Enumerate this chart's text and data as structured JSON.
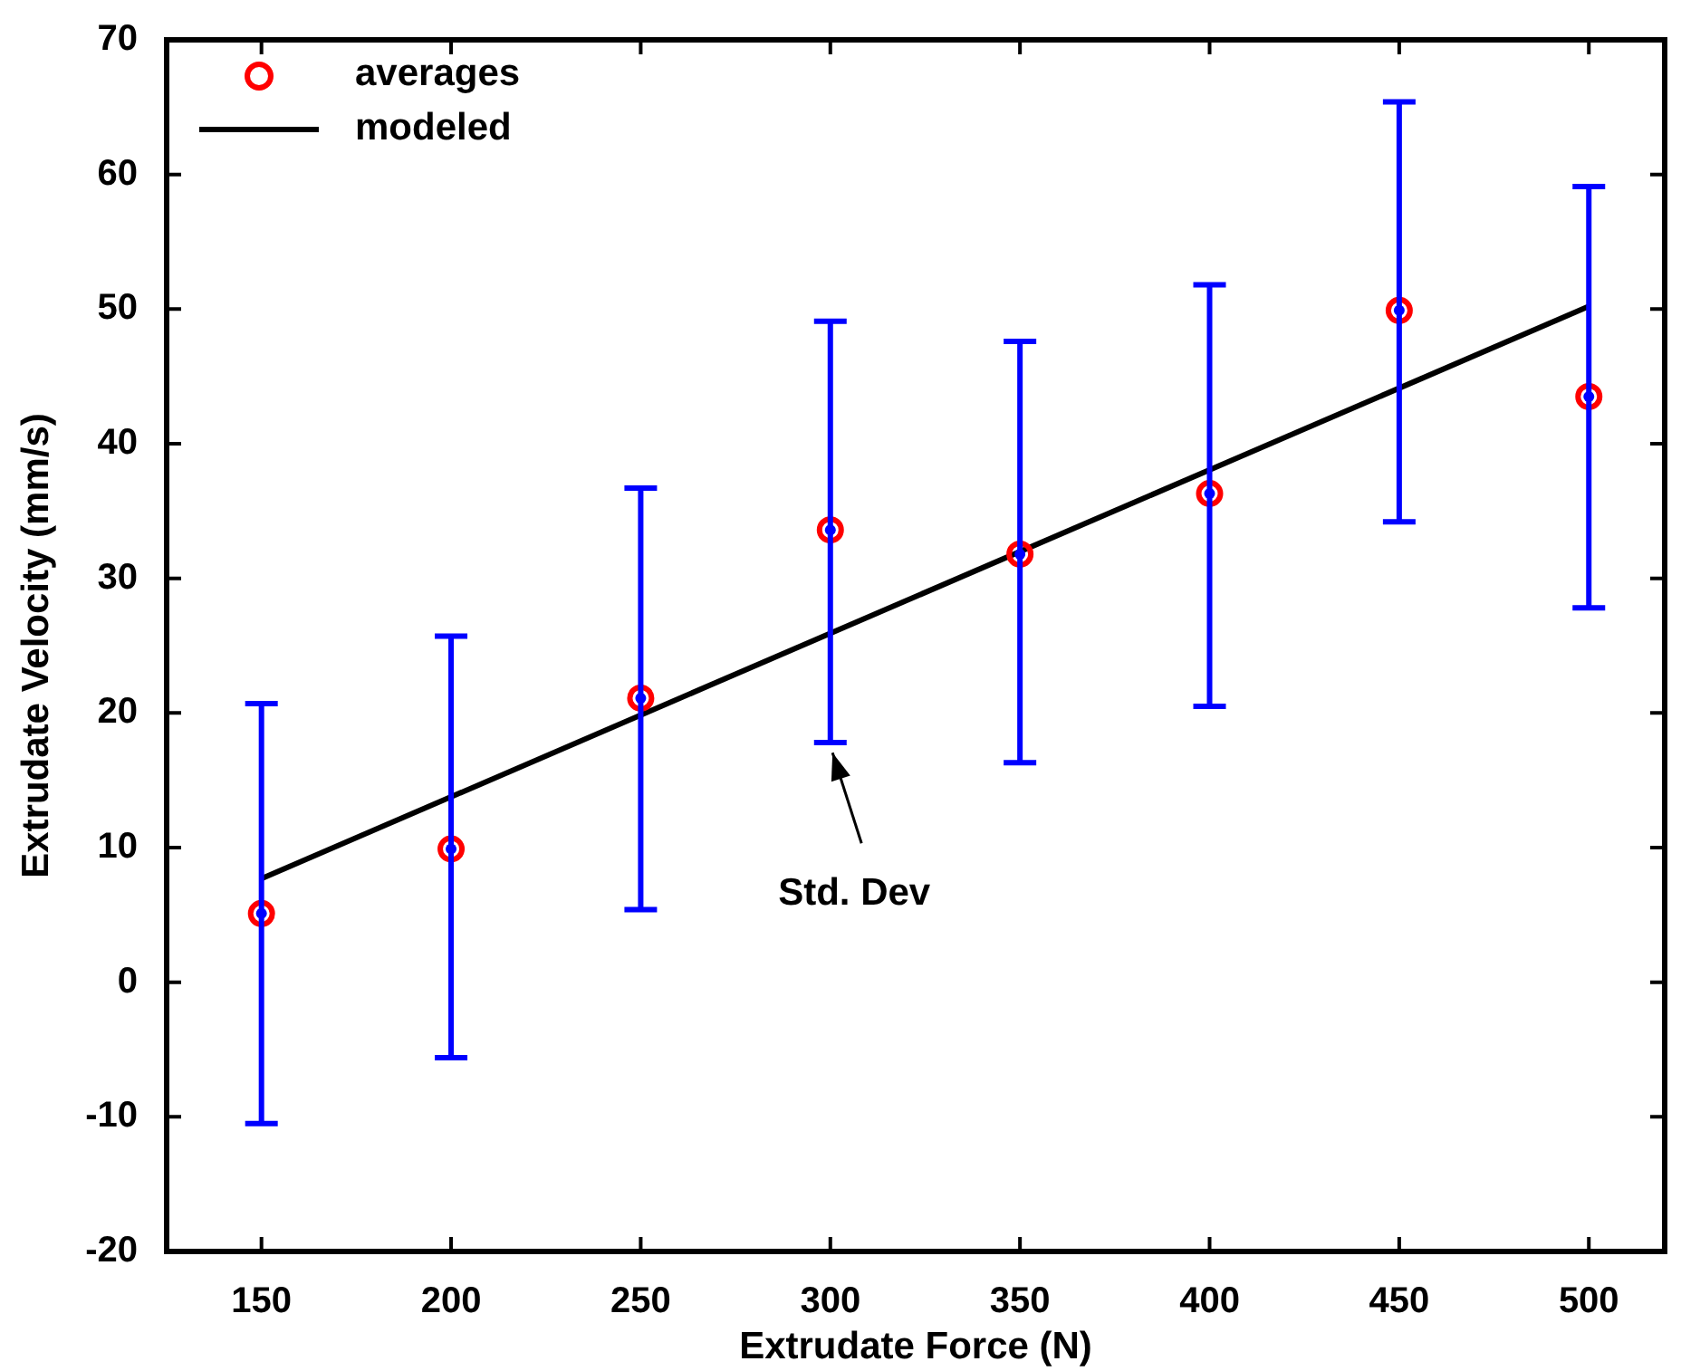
{
  "chart_data": {
    "type": "scatter",
    "xlabel": "Extrudate Force (N)",
    "ylabel": "Extrudate Velocity (mm/s)",
    "xlim": [
      125,
      520
    ],
    "xticks": [
      150,
      200,
      250,
      300,
      350,
      400,
      450,
      500
    ],
    "ylim": [
      -20,
      70
    ],
    "yticks": [
      -20,
      -10,
      0,
      10,
      20,
      30,
      40,
      50,
      60,
      70
    ],
    "grid": false,
    "legend": "top left",
    "annotations": [
      "Std. Dev"
    ],
    "series": [
      {
        "name": "averages",
        "marker": "circle",
        "color": "#ff0000",
        "x": [
          150,
          200,
          250,
          300,
          350,
          400,
          450,
          500
        ],
        "values": [
          5.1,
          9.9,
          21.1,
          33.6,
          31.8,
          36.3,
          49.9,
          43.5
        ],
        "errors": [
          [
            -10.5,
            20.7
          ],
          [
            -5.6,
            25.7
          ],
          [
            5.4,
            36.7
          ],
          [
            17.8,
            49.1
          ],
          [
            16.3,
            47.6
          ],
          [
            20.5,
            51.8
          ],
          [
            34.2,
            65.4
          ],
          [
            27.8,
            59.1
          ]
        ]
      },
      {
        "name": "modeled",
        "type": "line",
        "marker": "none",
        "line_style": "solid",
        "color": "#000000",
        "x": [
          150,
          500
        ],
        "values": [
          7.7,
          50.2
        ]
      }
    ]
  }
}
